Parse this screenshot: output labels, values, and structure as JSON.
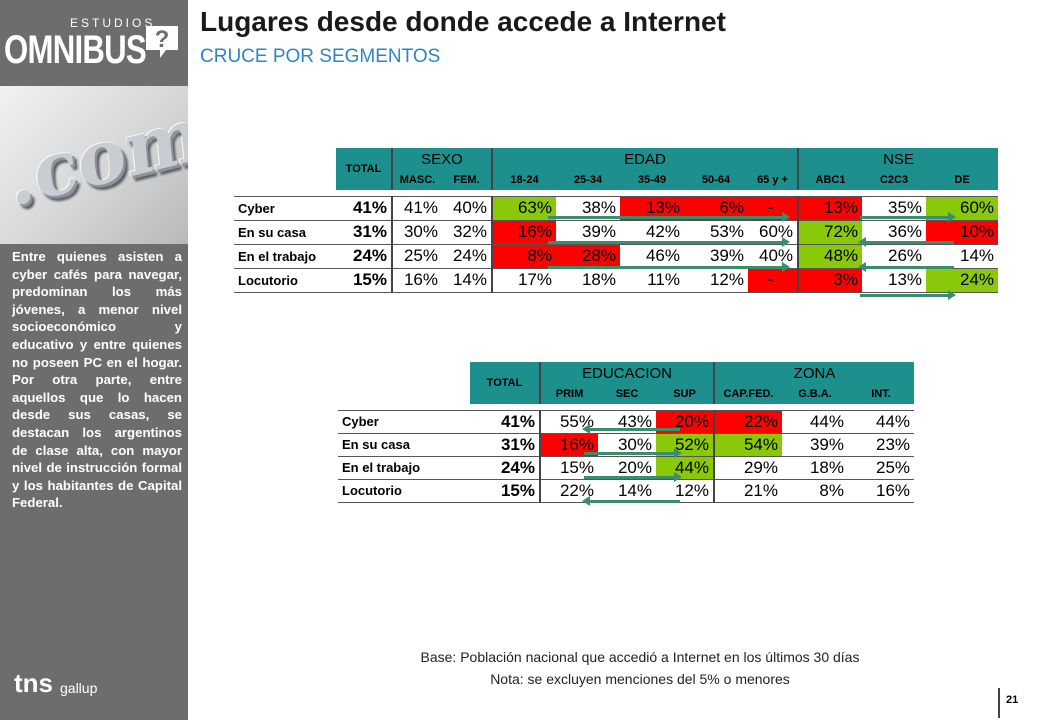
{
  "brand": {
    "estudios": "ESTUDIOS",
    "omnibus": "OMNIBUS",
    "tns": "tns",
    "gallup": "gallup"
  },
  "title": "Lugares desde donde accede a Internet",
  "subtitle": "CRUCE POR SEGMENTOS",
  "sidebar_text": "Entre quienes asisten a cyber cafés para navegar, predominan los más jóvenes, a menor nivel socioeconómico y educativo y entre quienes no poseen PC en el hogar. Por otra parte, entre aquellos que lo hacen desde sus casas, se destacan los argentinos de clase alta, con mayor nivel de instrucción formal y los habitantes de Capital Federal.",
  "colors": {
    "header": "#1d8f8c",
    "highlight_high": "#8ac80a",
    "highlight_low": "#ff0000",
    "arrow": "#3a8f6a"
  },
  "table1": {
    "total_label": "TOTAL",
    "groups": [
      "SEXO",
      "EDAD",
      "NSE"
    ],
    "subheaders": [
      "MASC.",
      "FEM.",
      "18-24",
      "25-34",
      "35-49",
      "50-64",
      "65 y +",
      "ABC1",
      "C2C3",
      "DE"
    ],
    "rows": [
      {
        "label": "Cyber",
        "total": "41%",
        "values": [
          "41%",
          "40%",
          "63%",
          "38%",
          "13%",
          "6%",
          "-",
          "13%",
          "35%",
          "60%"
        ],
        "hl": [
          "",
          "",
          "g",
          "",
          "r",
          "r",
          "r",
          "r",
          "",
          "g"
        ]
      },
      {
        "label": "En su casa",
        "total": "31%",
        "values": [
          "30%",
          "32%",
          "16%",
          "39%",
          "42%",
          "53%",
          "60%",
          "72%",
          "36%",
          "10%"
        ],
        "hl": [
          "",
          "",
          "r",
          "",
          "",
          "",
          "",
          "g",
          "",
          "r"
        ]
      },
      {
        "label": "En el trabajo",
        "total": "24%",
        "values": [
          "25%",
          "24%",
          "8%",
          "28%",
          "46%",
          "39%",
          "40%",
          "48%",
          "26%",
          "14%"
        ],
        "hl": [
          "",
          "",
          "r",
          "r",
          "",
          "",
          "",
          "g",
          "",
          ""
        ]
      },
      {
        "label": "Locutorio",
        "total": "15%",
        "values": [
          "16%",
          "14%",
          "17%",
          "18%",
          "11%",
          "12%",
          "-",
          "3%",
          "13%",
          "24%"
        ],
        "hl": [
          "",
          "",
          "",
          "",
          "",
          "",
          "r",
          "r",
          "",
          "g"
        ]
      }
    ]
  },
  "table2": {
    "total_label": "TOTAL",
    "groups": [
      "EDUCACION",
      "ZONA"
    ],
    "subheaders": [
      "PRIM",
      "SEC",
      "SUP",
      "CAP.FED.",
      "G.B.A.",
      "INT."
    ],
    "rows": [
      {
        "label": "Cyber",
        "total": "41%",
        "values": [
          "55%",
          "43%",
          "20%",
          "22%",
          "44%",
          "44%"
        ],
        "hl": [
          "",
          "",
          "r",
          "r",
          "",
          ""
        ]
      },
      {
        "label": "En su casa",
        "total": "31%",
        "values": [
          "16%",
          "30%",
          "52%",
          "54%",
          "39%",
          "23%"
        ],
        "hl": [
          "r",
          "",
          "g",
          "g",
          "",
          ""
        ]
      },
      {
        "label": "En el trabajo",
        "total": "24%",
        "values": [
          "15%",
          "20%",
          "44%",
          "29%",
          "18%",
          "25%"
        ],
        "hl": [
          "",
          "",
          "g",
          "",
          "",
          ""
        ]
      },
      {
        "label": "Locutorio",
        "total": "15%",
        "values": [
          "22%",
          "14%",
          "12%",
          "21%",
          "8%",
          "16%"
        ],
        "hl": [
          "",
          "",
          "",
          "",
          "",
          ""
        ]
      }
    ]
  },
  "notes": {
    "base": "Base: Población nacional que accedió a Internet en los últimos 30 días",
    "nota": "Nota: se excluyen menciones del 5% o menores"
  },
  "page_number": "21"
}
